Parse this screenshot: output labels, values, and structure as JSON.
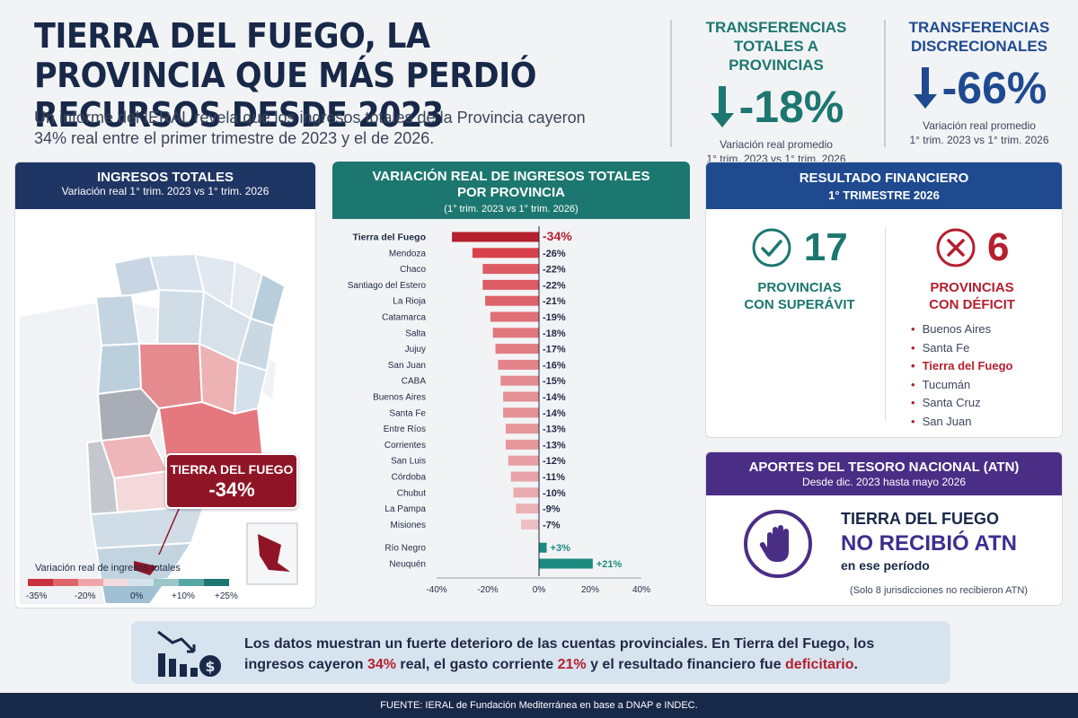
{
  "header": {
    "title": "TIERRA DEL FUEGO, LA PROVINCIA QUE MÁS PERDIÓ RECURSOS DESDE 2023",
    "subtitle": "Un informe del IERAL revela que los ingresos totales de la Provincia cayeron 34% real entre el primer trimestre de 2023 y el de 2026."
  },
  "kpis": [
    {
      "title": "TRANSFERENCIAS TOTALES A PROVINCIAS",
      "value": "-18%",
      "note1": "Variación real promedio",
      "note2": "1° trim. 2023 vs 1° trim. 2026",
      "color": "#1c7770",
      "icon": "arrow-down-icon"
    },
    {
      "title": "TRANSFERENCIAS DISCRECIONALES",
      "value": "-66%",
      "note1": "Variación real promedio",
      "note2": "1° trim. 2023 vs 1° trim. 2026",
      "color": "#1f4a90",
      "icon": "arrow-down-icon"
    }
  ],
  "map_panel": {
    "title": "INGRESOS TOTALES",
    "subtitle": "Variación real 1° trim. 2023 vs 1° trim. 2026",
    "callout_label": "TIERRA DEL FUEGO",
    "callout_value": "-34%",
    "legend_title": "Variación real de ingresos totales",
    "legend_ticks": [
      "-35%",
      "-20%",
      "0%",
      "+10%",
      "+25%"
    ],
    "legend_colors": [
      "#c8323c",
      "#e0646b",
      "#f0a5a8",
      "#f3dcdc",
      "#d4e3ec",
      "#9cc6c9",
      "#56a6a3",
      "#1c7770"
    ]
  },
  "chart_panel": {
    "title_line1": "VARIACIÓN REAL DE INGRESOS TOTALES",
    "title_line2": "POR PROVINCIA",
    "subtitle": "(1° trim. 2023 vs 1° trim. 2026)"
  },
  "chart_data": {
    "type": "bar",
    "orientation": "horizontal",
    "categories": [
      "Tierra del Fuego",
      "Mendoza",
      "Chaco",
      "Santiago del Estero",
      "La Rioja",
      "Catamarca",
      "Salta",
      "Jujuy",
      "San Juan",
      "CABA",
      "Buenos Aires",
      "Santa Fe",
      "Entre Ríos",
      "Corrientes",
      "San Luis",
      "Córdoba",
      "Chubut",
      "La Pampa",
      "Misiones",
      "Río Negro",
      "Neuquén"
    ],
    "values": [
      -34,
      -26,
      -22,
      -22,
      -21,
      -19,
      -18,
      -17,
      -16,
      -15,
      -14,
      -14,
      -13,
      -13,
      -12,
      -11,
      -10,
      -9,
      -7,
      3,
      21
    ],
    "value_labels": [
      "-34%",
      "-26%",
      "-22%",
      "-22%",
      "-21%",
      "-19%",
      "-18%",
      "-17%",
      "-16%",
      "-15%",
      "-14%",
      "-14%",
      "-13%",
      "-13%",
      "-12%",
      "-11%",
      "-10%",
      "-9%",
      "-7%",
      "+3%",
      "+21%"
    ],
    "xlim": [
      -40,
      40
    ],
    "xticks": [
      "-40%",
      "-20%",
      "0%",
      "20%",
      "40%"
    ],
    "xtick_values": [
      -40,
      -20,
      0,
      20,
      40
    ],
    "highlight": "Tierra del Fuego",
    "colors": {
      "highlight": "#b51f2e",
      "negative_strong": "#d9414b",
      "negative_light": "#ecbfc2",
      "positive": "#1c8a7f"
    },
    "grid": false
  },
  "result_panel": {
    "title": "RESULTADO FINANCIERO",
    "subtitle": "1° TRIMESTRE 2026",
    "superavit_value": "17",
    "superavit_line1": "PROVINCIAS",
    "superavit_line2": "CON SUPERÁVIT",
    "deficit_value": "6",
    "deficit_line1": "PROVINCIAS",
    "deficit_line2": "CON DÉFICIT",
    "deficit_list": [
      "Buenos Aires",
      "Santa Fe",
      "Tierra del Fuego",
      "Tucumán",
      "Santa Cruz",
      "San Juan"
    ],
    "highlight": "Tierra del Fuego",
    "colors": {
      "superavit": "#1c7770",
      "deficit": "#b51f2e"
    }
  },
  "atn_panel": {
    "title": "APORTES DEL TESORO NACIONAL (ATN)",
    "subtitle": "Desde dic. 2023 hasta mayo 2026",
    "line1": "TIERRA DEL FUEGO",
    "line2": "NO RECIBIÓ ATN",
    "line3": "en ese período",
    "note": "(Solo 8 jurisdicciones no recibieron ATN)",
    "icon": "stop-hand-icon"
  },
  "bottom": {
    "text_a": "Los datos muestran un fuerte deterioro de las cuentas provinciales. En Tierra del Fuego, los ingresos cayeron ",
    "v1": "34%",
    "text_b": " real, el gasto corriente ",
    "v2": "21%",
    "text_c": " y el resultado financiero fue ",
    "v3": "deficitario",
    "text_d": ".",
    "icon": "declining-chart-money-icon"
  },
  "footer": "FUENTE: IERAL de Fundación Mediterránea en base a DNAP e INDEC."
}
